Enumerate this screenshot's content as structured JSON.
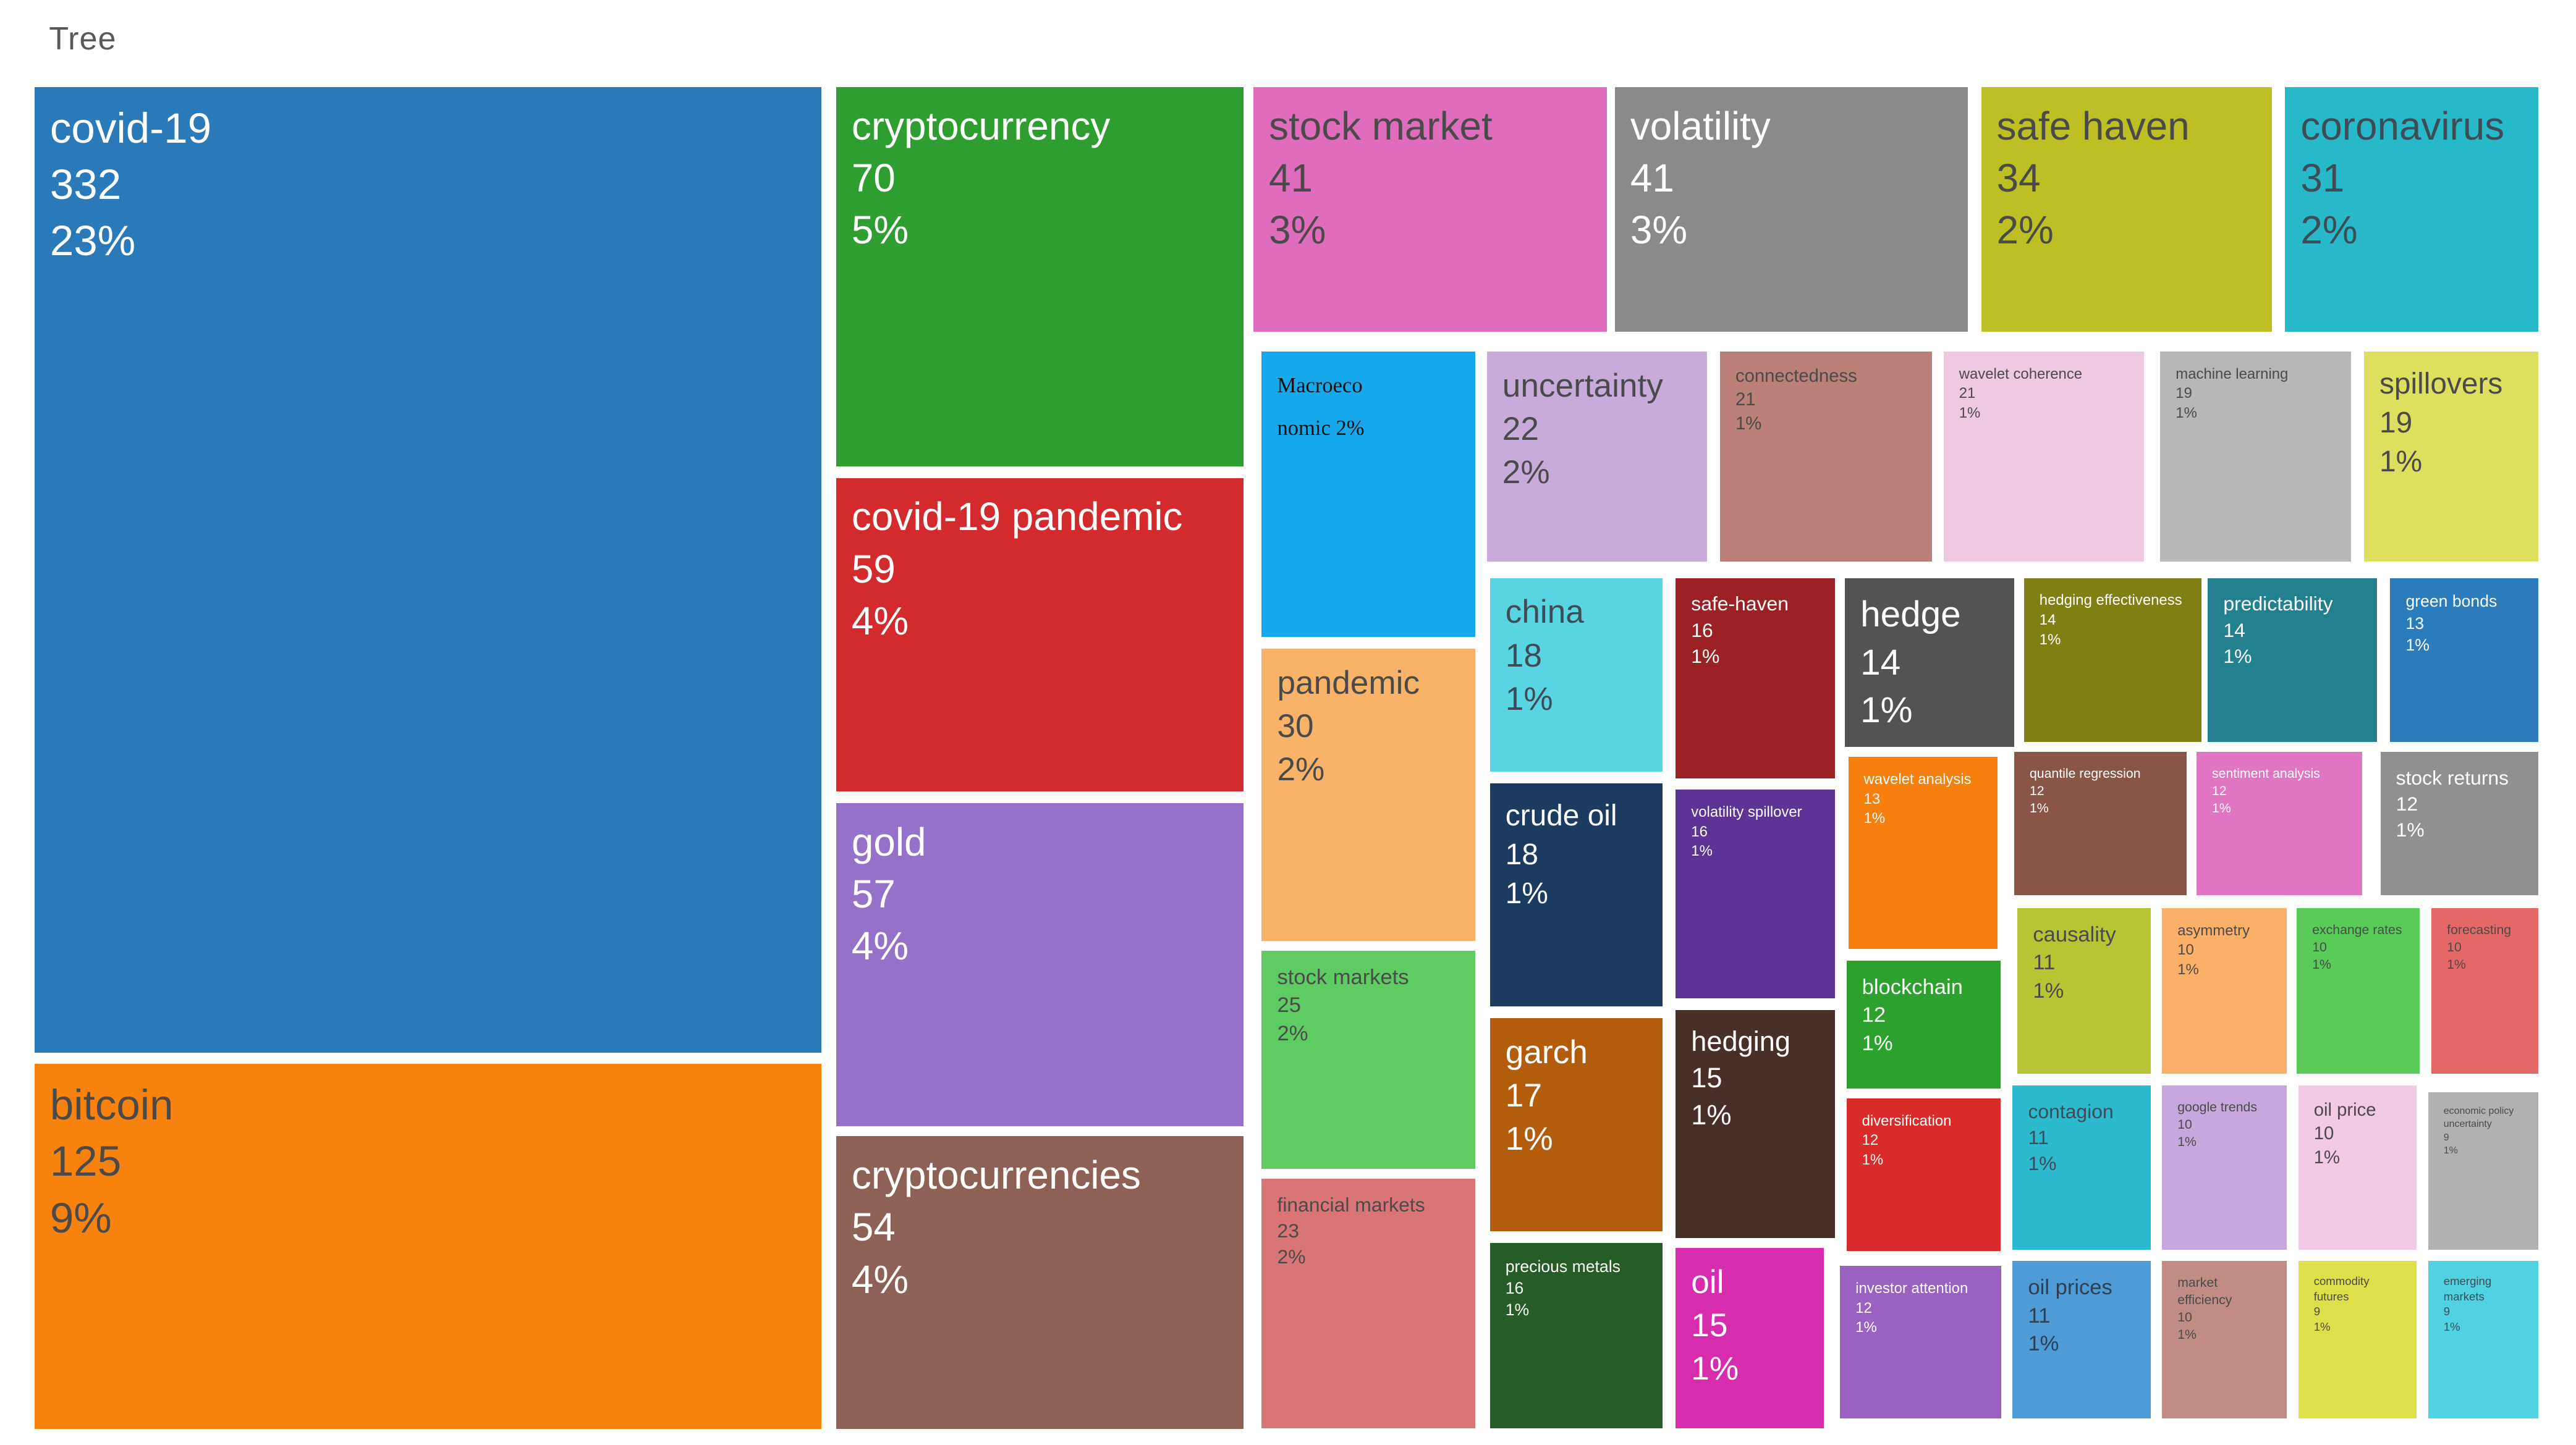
{
  "page": {
    "title": "Tree"
  },
  "chart_data": {
    "type": "treemap",
    "title": "Tree",
    "legend": "none",
    "note": "word treemap; each tile shows keyword, occurrence count, percentage",
    "items": [
      {
        "label": "covid-19",
        "value": 332,
        "pct": "23%",
        "color": "#2a7ab9",
        "text": "#ffffff",
        "x": 1.34,
        "y": 6.02,
        "w": 30.55,
        "h": 66.82,
        "fs": 26
      },
      {
        "label": "bitcoin",
        "value": 125,
        "pct": "9%",
        "color": "#f8820e",
        "text": "#4a4a4a",
        "x": 1.34,
        "y": 73.64,
        "w": 30.55,
        "h": 25.23,
        "fs": 26
      },
      {
        "label": "cryptocurrency",
        "value": 70,
        "pct": "5%",
        "color": "#2f9e30",
        "text": "#ffffff",
        "x": 32.46,
        "y": 6.02,
        "w": 15.82,
        "h": 26.25,
        "fs": 24
      },
      {
        "label": "covid-19 pandemic",
        "value": 59,
        "pct": "4%",
        "color": "#d32b2d",
        "text": "#ffffff",
        "x": 32.46,
        "y": 33.07,
        "w": 15.82,
        "h": 21.7,
        "fs": 24
      },
      {
        "label": "gold",
        "value": 57,
        "pct": "4%",
        "color": "#9671c9",
        "text": "#ffffff",
        "x": 32.46,
        "y": 55.57,
        "w": 15.82,
        "h": 22.39,
        "fs": 24
      },
      {
        "label": "cryptocurrencies",
        "value": 54,
        "pct": "4%",
        "color": "#8d6156",
        "text": "#ffffff",
        "x": 32.46,
        "y": 78.64,
        "w": 15.82,
        "h": 20.23,
        "fs": 24
      },
      {
        "label": "stock market",
        "value": 41,
        "pct": "3%",
        "color": "#e06cbd",
        "text": "#4a4a4a",
        "x": 48.66,
        "y": 6.02,
        "w": 13.71,
        "h": 16.93,
        "fs": 24
      },
      {
        "label": "volatility",
        "value": 41,
        "pct": "3%",
        "color": "#8a8a8a",
        "text": "#ffffff",
        "x": 62.69,
        "y": 6.02,
        "w": 13.71,
        "h": 16.93,
        "fs": 24
      },
      {
        "label": "safe haven",
        "value": 34,
        "pct": "2%",
        "color": "#bebf25",
        "text": "#4a4a4a",
        "x": 76.91,
        "y": 6.02,
        "w": 11.29,
        "h": 16.93,
        "fs": 24
      },
      {
        "label": "coronavirus",
        "value": 31,
        "pct": "2%",
        "color": "#27b9c9",
        "text": "#3f4b55",
        "x": 88.71,
        "y": 6.02,
        "w": 9.82,
        "h": 16.93,
        "fs": 24
      },
      {
        "label": "Macroeconomic",
        "pct": "2%",
        "lines": [
          "Macroeco",
          "nomic 2%"
        ],
        "serif": true,
        "color": "#16a8ea",
        "text": "#111111",
        "x": 48.98,
        "y": 24.32,
        "w": 8.29,
        "h": 19.77,
        "fs": 13
      },
      {
        "label": "uncertainty",
        "value": 22,
        "pct": "2%",
        "color": "#c8aadb",
        "text": "#4a4a4a",
        "x": 57.72,
        "y": 24.32,
        "w": 8.55,
        "h": 14.55,
        "fs": 20
      },
      {
        "label": "connectedness",
        "value": 21,
        "pct": "1%",
        "color": "#bb8077",
        "text": "#4a4a4a",
        "x": 66.77,
        "y": 24.32,
        "w": 8.23,
        "h": 14.55,
        "fs": 11
      },
      {
        "label": "wavelet coherence",
        "value": 21,
        "pct": "1%",
        "color": "#efc8e1",
        "text": "#4a4a4a",
        "x": 75.45,
        "y": 24.32,
        "w": 7.78,
        "h": 14.55,
        "fs": 9
      },
      {
        "label": "machine learning",
        "value": 19,
        "pct": "1%",
        "color": "#b7b7b7",
        "text": "#4a4a4a",
        "x": 83.86,
        "y": 24.32,
        "w": 7.4,
        "h": 14.55,
        "fs": 9
      },
      {
        "label": "spillovers",
        "value": 19,
        "pct": "1%",
        "color": "#dedf5e",
        "text": "#4a4a4a",
        "x": 91.77,
        "y": 24.32,
        "w": 6.76,
        "h": 14.55,
        "fs": 18
      },
      {
        "label": "pandemic",
        "value": 30,
        "pct": "2%",
        "color": "#f9b369",
        "text": "#4a4a4a",
        "x": 48.98,
        "y": 44.89,
        "w": 8.29,
        "h": 20.23,
        "fs": 20
      },
      {
        "label": "stock markets",
        "value": 25,
        "pct": "2%",
        "color": "#5fcb63",
        "text": "#4a4a4a",
        "x": 48.98,
        "y": 65.8,
        "w": 8.29,
        "h": 15.11,
        "fs": 13
      },
      {
        "label": "financial markets",
        "value": 23,
        "pct": "2%",
        "color": "#d97577",
        "text": "#4a4a4a",
        "x": 48.98,
        "y": 81.59,
        "w": 8.29,
        "h": 17.27,
        "fs": 12
      },
      {
        "label": "china",
        "value": 18,
        "pct": "1%",
        "color": "#58d4e3",
        "text": "#3f4b55",
        "x": 57.84,
        "y": 40.0,
        "w": 6.7,
        "h": 13.41,
        "fs": 20
      },
      {
        "label": "safe-haven",
        "value": 16,
        "pct": "1%",
        "color": "#9c2124",
        "text": "#ffffff",
        "x": 65.05,
        "y": 40.0,
        "w": 6.19,
        "h": 13.86,
        "fs": 12
      },
      {
        "label": "hedge",
        "value": 14,
        "pct": "1%",
        "color": "#535353",
        "text": "#ffffff",
        "x": 71.62,
        "y": 40.0,
        "w": 6.57,
        "h": 11.7,
        "fs": 22
      },
      {
        "label": "hedging effectiveness",
        "value": 14,
        "pct": "1%",
        "color": "#7f7f13",
        "text": "#ffffff",
        "x": 78.57,
        "y": 40.0,
        "w": 6.89,
        "h": 11.36,
        "fs": 9
      },
      {
        "label": "predictability",
        "value": 14,
        "pct": "1%",
        "color": "#23808e",
        "text": "#ffffff",
        "x": 85.71,
        "y": 40.0,
        "w": 6.57,
        "h": 11.36,
        "fs": 12
      },
      {
        "label": "green bonds",
        "value": 13,
        "pct": "1%",
        "color": "#2b7cbc",
        "text": "#ffffff",
        "x": 92.79,
        "y": 40.0,
        "w": 5.74,
        "h": 11.36,
        "fs": 10
      },
      {
        "label": "crude oil",
        "value": 18,
        "pct": "1%",
        "color": "#1c3b60",
        "text": "#ffffff",
        "x": 57.84,
        "y": 54.2,
        "w": 6.7,
        "h": 15.45,
        "fs": 18
      },
      {
        "label": "volatility spillover",
        "value": 16,
        "pct": "1%",
        "color": "#5d3496",
        "text": "#ffffff",
        "x": 65.05,
        "y": 54.66,
        "w": 6.19,
        "h": 14.43,
        "fs": 9
      },
      {
        "label": "wavelet analysis",
        "value": 13,
        "pct": "1%",
        "color": "#f67f0d",
        "text": "#ffffff",
        "x": 71.75,
        "y": 52.39,
        "w": 5.8,
        "h": 13.3,
        "fs": 9
      },
      {
        "label": "quantile regression",
        "value": 12,
        "pct": "1%",
        "color": "#8a5447",
        "text": "#ffffff",
        "x": 78.19,
        "y": 52.05,
        "w": 6.7,
        "h": 9.89,
        "fs": 8
      },
      {
        "label": "sentiment analysis",
        "value": 12,
        "pct": "1%",
        "color": "#e274c4",
        "text": "#ffffff",
        "x": 85.27,
        "y": 52.05,
        "w": 6.44,
        "h": 9.89,
        "fs": 8
      },
      {
        "label": "stock returns",
        "value": 12,
        "pct": "1%",
        "color": "#909090",
        "text": "#ffffff",
        "x": 92.41,
        "y": 52.05,
        "w": 6.12,
        "h": 9.89,
        "fs": 12
      },
      {
        "label": "garch",
        "value": 17,
        "pct": "1%",
        "color": "#b25c0c",
        "text": "#ffffff",
        "x": 57.84,
        "y": 70.45,
        "w": 6.7,
        "h": 14.77,
        "fs": 20
      },
      {
        "label": "hedging",
        "value": 15,
        "pct": "1%",
        "color": "#483029",
        "text": "#ffffff",
        "x": 65.05,
        "y": 69.89,
        "w": 6.19,
        "h": 15.8,
        "fs": 17
      },
      {
        "label": "blockchain",
        "value": 12,
        "pct": "1%",
        "color": "#2da12d",
        "text": "#ffffff",
        "x": 71.68,
        "y": 66.48,
        "w": 5.99,
        "h": 8.86,
        "fs": 13
      },
      {
        "label": "causality",
        "value": 11,
        "pct": "1%",
        "color": "#b7c434",
        "text": "#4a4a4a",
        "x": 78.32,
        "y": 62.84,
        "w": 5.17,
        "h": 11.48,
        "fs": 13
      },
      {
        "label": "asymmetry",
        "value": 10,
        "pct": "1%",
        "color": "#fbb06a",
        "text": "#4a4a4a",
        "x": 83.93,
        "y": 62.84,
        "w": 4.85,
        "h": 11.48,
        "fs": 9
      },
      {
        "label": "exchange rates",
        "value": 10,
        "pct": "1%",
        "color": "#59cb59",
        "text": "#4a4a4a",
        "x": 89.16,
        "y": 62.84,
        "w": 4.78,
        "h": 11.48,
        "fs": 8
      },
      {
        "label": "forecasting",
        "value": 10,
        "pct": "1%",
        "color": "#e56868",
        "text": "#4a4a4a",
        "x": 94.39,
        "y": 62.84,
        "w": 4.15,
        "h": 11.48,
        "fs": 8
      },
      {
        "label": "precious metals",
        "value": 16,
        "pct": "1%",
        "color": "#265c26",
        "text": "#ffffff",
        "x": 57.84,
        "y": 86.02,
        "w": 6.7,
        "h": 12.84,
        "fs": 10
      },
      {
        "label": "oil",
        "value": 15,
        "pct": "1%",
        "color": "#d72cad",
        "text": "#ffffff",
        "x": 65.05,
        "y": 86.36,
        "w": 5.74,
        "h": 12.5,
        "fs": 20
      },
      {
        "label": "diversification",
        "value": 12,
        "pct": "1%",
        "color": "#da2b2b",
        "text": "#ffffff",
        "x": 71.68,
        "y": 76.02,
        "w": 5.99,
        "h": 10.57,
        "fs": 9
      },
      {
        "label": "contagion",
        "value": 11,
        "pct": "1%",
        "color": "#2db9ce",
        "text": "#3f4b55",
        "x": 78.13,
        "y": 75.11,
        "w": 5.36,
        "h": 11.36,
        "fs": 12
      },
      {
        "label": "google trends",
        "value": 10,
        "pct": "1%",
        "color": "#c7a7de",
        "text": "#4a4a4a",
        "x": 83.93,
        "y": 75.11,
        "w": 4.85,
        "h": 11.36,
        "fs": 8
      },
      {
        "label": "oil price",
        "value": 10,
        "pct": "1%",
        "color": "#f3c9e5",
        "text": "#4a4a4a",
        "x": 89.22,
        "y": 75.11,
        "w": 4.59,
        "h": 11.36,
        "fs": 11
      },
      {
        "label": "economic policy uncertainty",
        "value": 9,
        "pct": "1%",
        "color": "#b1b1b1",
        "text": "#4a4a4a",
        "x": 94.26,
        "y": 75.57,
        "w": 4.27,
        "h": 10.91,
        "fs": 6
      },
      {
        "label": "investor attention",
        "value": 12,
        "pct": "1%",
        "color": "#9a60c2",
        "text": "#ffffff",
        "x": 71.43,
        "y": 87.61,
        "w": 6.25,
        "h": 10.57,
        "fs": 9
      },
      {
        "label": "oil prices",
        "value": 11,
        "pct": "1%",
        "color": "#4f9bd8",
        "text": "#2f3e50",
        "x": 78.13,
        "y": 87.27,
        "w": 5.36,
        "h": 10.91,
        "fs": 13
      },
      {
        "label": "market efficiency",
        "value": 10,
        "pct": "1%",
        "color": "#c18c83",
        "text": "#4a4a4a",
        "x": 83.93,
        "y": 87.27,
        "w": 4.85,
        "h": 10.91,
        "fs": 8
      },
      {
        "label": "commodity futures",
        "value": 9,
        "pct": "1%",
        "color": "#dfdf4a",
        "text": "#4a4a4a",
        "x": 89.22,
        "y": 87.27,
        "w": 4.59,
        "h": 10.91,
        "fs": 7
      },
      {
        "label": "emerging markets",
        "value": 9,
        "pct": "1%",
        "color": "#50d2e2",
        "text": "#3f4b55",
        "x": 94.26,
        "y": 87.27,
        "w": 4.27,
        "h": 10.91,
        "fs": 7
      }
    ]
  }
}
